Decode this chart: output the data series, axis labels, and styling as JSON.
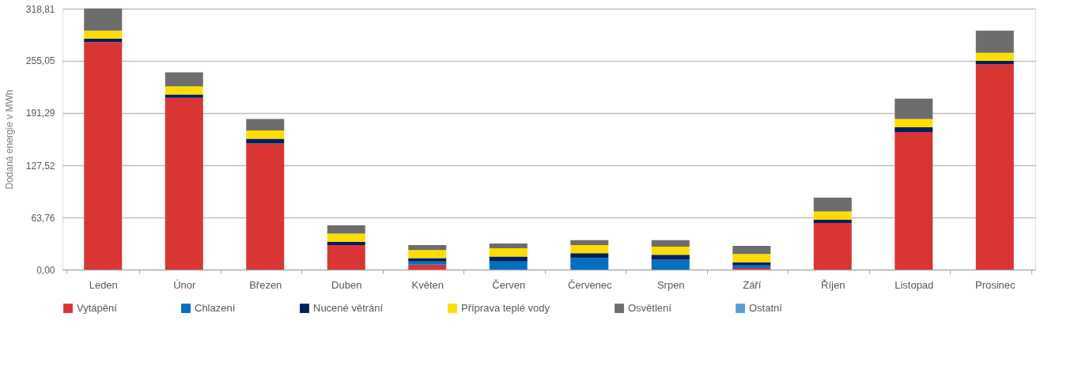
{
  "chart_data": {
    "type": "bar",
    "stacked": true,
    "ylabel": "Dodaná energie v MWh",
    "categories": [
      "Leden",
      "Únor",
      "Březen",
      "Duben",
      "Květen",
      "Červen",
      "Červenec",
      "Srpen",
      "Září",
      "Říjen",
      "Listopad",
      "Prosinec"
    ],
    "series": [
      {
        "name": "Vytápění",
        "color": "#d93535",
        "values": [
          278,
          210,
          154,
          30,
          6,
          0,
          0,
          0,
          2,
          57,
          168,
          251
        ]
      },
      {
        "name": "Chlazení",
        "color": "#0070c0",
        "values": [
          0,
          0,
          0,
          0,
          4,
          10,
          14,
          12,
          3,
          0,
          0,
          0
        ]
      },
      {
        "name": "Nucené větrání",
        "color": "#002060",
        "values": [
          4,
          4,
          6,
          4,
          4,
          6,
          6,
          6,
          4,
          4,
          6,
          4
        ]
      },
      {
        "name": "Příprava teplé vody",
        "color": "#ffdd00",
        "values": [
          10,
          10,
          10,
          10,
          10,
          10,
          10,
          10,
          10,
          10,
          10,
          10
        ]
      },
      {
        "name": "Osvětlení",
        "color": "#6d6d6d",
        "values": [
          27,
          17,
          14,
          10,
          6,
          6,
          6,
          8,
          10,
          17,
          25,
          27
        ]
      },
      {
        "name": "Ostatní",
        "color": "#5b9bd5",
        "values": [
          0,
          0,
          0,
          0,
          0,
          0,
          0,
          0,
          0,
          0,
          0,
          0
        ]
      }
    ],
    "ylim": [
      0,
      318.81
    ],
    "yticks": [
      {
        "value": 0,
        "label": "0,00"
      },
      {
        "value": 63.76,
        "label": "63,76"
      },
      {
        "value": 127.52,
        "label": "127,52"
      },
      {
        "value": 191.29,
        "label": "191,29"
      },
      {
        "value": 255.05,
        "label": "255,05"
      },
      {
        "value": 318.81,
        "label": "318,81"
      }
    ],
    "grid": "y",
    "legend": "bottom"
  }
}
